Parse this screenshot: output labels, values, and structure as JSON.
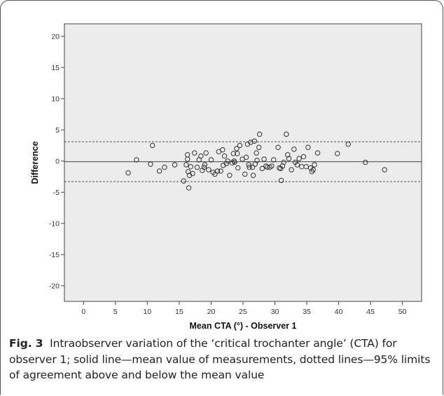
{
  "chart_data": {
    "type": "scatter",
    "xlabel": "Mean CTA (°) - Observer 1",
    "ylabel": "Difference",
    "xlim": [
      -3,
      53
    ],
    "ylim": [
      -22.5,
      22
    ],
    "x_ticks": [
      0,
      5,
      10,
      15,
      20,
      25,
      30,
      35,
      40,
      45,
      50
    ],
    "y_ticks": [
      20,
      15,
      10,
      5,
      0,
      -5,
      -10,
      -15,
      -20
    ],
    "mean_line": -0.1,
    "upper_limit": 3.1,
    "lower_limit": -3.3,
    "points": [
      [
        7.0,
        -1.9
      ],
      [
        8.3,
        0.2
      ],
      [
        10.5,
        -0.5
      ],
      [
        10.8,
        2.5
      ],
      [
        11.9,
        -1.6
      ],
      [
        12.7,
        -1.0
      ],
      [
        14.3,
        -0.6
      ],
      [
        15.7,
        -3.2
      ],
      [
        16.1,
        -0.6
      ],
      [
        16.3,
        1.0
      ],
      [
        16.3,
        0.3
      ],
      [
        16.4,
        -1.7
      ],
      [
        16.5,
        -4.3
      ],
      [
        16.6,
        -2.3
      ],
      [
        16.8,
        -0.9
      ],
      [
        17.1,
        -2.0
      ],
      [
        17.4,
        1.3
      ],
      [
        17.8,
        -1.0
      ],
      [
        18.1,
        0.2
      ],
      [
        18.4,
        0.8
      ],
      [
        18.6,
        -1.5
      ],
      [
        18.9,
        -1.0
      ],
      [
        19.0,
        -0.6
      ],
      [
        19.2,
        1.3
      ],
      [
        19.6,
        -1.4
      ],
      [
        20.0,
        0.2
      ],
      [
        20.3,
        -1.8
      ],
      [
        20.6,
        -2.1
      ],
      [
        21.0,
        -1.6
      ],
      [
        21.2,
        1.5
      ],
      [
        21.5,
        -1.6
      ],
      [
        21.8,
        1.8
      ],
      [
        21.9,
        -0.7
      ],
      [
        22.1,
        0.8
      ],
      [
        22.4,
        -0.4
      ],
      [
        22.6,
        0.0
      ],
      [
        22.9,
        -2.3
      ],
      [
        23.3,
        -0.3
      ],
      [
        23.5,
        1.2
      ],
      [
        23.6,
        0.0
      ],
      [
        23.7,
        -0.2
      ],
      [
        24.0,
        2.0
      ],
      [
        24.1,
        1.2
      ],
      [
        24.2,
        -1.1
      ],
      [
        24.5,
        2.5
      ],
      [
        24.9,
        0.3
      ],
      [
        25.3,
        -2.1
      ],
      [
        25.5,
        0.6
      ],
      [
        25.7,
        2.7
      ],
      [
        25.9,
        -0.6
      ],
      [
        26.0,
        -1.0
      ],
      [
        26.2,
        3.0
      ],
      [
        26.5,
        -1.0
      ],
      [
        26.6,
        -2.3
      ],
      [
        26.8,
        3.2
      ],
      [
        26.9,
        -0.5
      ],
      [
        27.1,
        1.3
      ],
      [
        27.2,
        0.1
      ],
      [
        27.5,
        2.2
      ],
      [
        27.6,
        4.3
      ],
      [
        28.0,
        -1.2
      ],
      [
        28.3,
        0.3
      ],
      [
        28.6,
        -0.8
      ],
      [
        28.8,
        -1.0
      ],
      [
        29.2,
        -1.0
      ],
      [
        29.5,
        -0.8
      ],
      [
        29.8,
        0.2
      ],
      [
        30.5,
        2.2
      ],
      [
        30.7,
        -1.1
      ],
      [
        30.9,
        -1.2
      ],
      [
        31.0,
        -3.1
      ],
      [
        31.2,
        -0.8
      ],
      [
        31.4,
        -0.2
      ],
      [
        31.8,
        4.3
      ],
      [
        32.0,
        1.0
      ],
      [
        32.2,
        0.4
      ],
      [
        32.6,
        -1.4
      ],
      [
        33.0,
        1.9
      ],
      [
        33.2,
        -0.2
      ],
      [
        33.5,
        -0.6
      ],
      [
        33.8,
        0.4
      ],
      [
        34.2,
        -0.9
      ],
      [
        34.5,
        0.7
      ],
      [
        34.9,
        -0.9
      ],
      [
        35.2,
        2.2
      ],
      [
        35.6,
        -1.1
      ],
      [
        35.8,
        -1.7
      ],
      [
        36.0,
        -1.4
      ],
      [
        36.2,
        -0.6
      ],
      [
        36.7,
        1.3
      ],
      [
        39.8,
        1.2
      ],
      [
        41.5,
        2.7
      ],
      [
        44.2,
        -0.2
      ],
      [
        47.2,
        -1.4
      ]
    ]
  },
  "caption": {
    "label": "Fig. 3",
    "text": "Intraobserver variation of the ‘critical trochanter angle’ (CTA) for observer 1; solid line—mean value of measurements, dotted lines—95% limits of agreement above and below the mean value"
  },
  "colors": {
    "plot_background": "#ececec",
    "frame": "#555555",
    "marker": "#333333",
    "line": "#555555"
  }
}
